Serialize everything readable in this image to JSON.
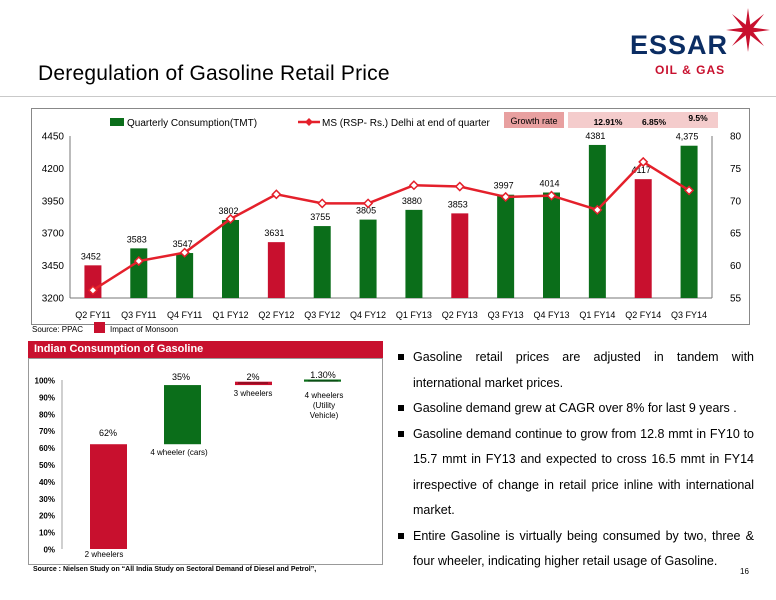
{
  "slide": {
    "title": "Deregulation of Gasoline Retail Price",
    "page_number": "16"
  },
  "logo": {
    "word": "ESSAR",
    "sub": "OIL & GAS",
    "mark_icon": "essar-star-icon"
  },
  "growth_box": {
    "label": "Growth rate",
    "values": [
      "12.91%",
      "6.85%",
      "9.5%"
    ]
  },
  "source1": "Source: PPAC",
  "monsoon_label": "Impact of Monsoon",
  "panel_title": "Indian Consumption of Gasoline",
  "source2": "Source : Nielsen Study on “All India Study on Sectoral Demand of Diesel and Petrol”,",
  "bullets": [
    "Gasoline retail prices are adjusted in tandem with international market prices.",
    "Gasoline demand grew at CAGR over 8% for last 9 years .",
    "Gasoline demand continue to grow from 12.8 mmt in FY10 to 15.7 mmt in FY13 and expected to cross 16.5 mmt in FY14 irrespective of change in retail price inline with international market.",
    "Entire Gasoline is virtually being consumed by two, three & four wheeler, indicating higher retail usage of Gasoline."
  ],
  "colors": {
    "green": "#0b6e1a",
    "red": "#c8102e",
    "line_red": "#e4202b",
    "growth_label_bg": "#e8a0a0",
    "growth_values_bg": "#f4cccc"
  },
  "chart_data": [
    {
      "type": "bar",
      "categories": [
        "Q2 FY11",
        "Q3 FY11",
        "Q4 FY11",
        "Q1 FY12",
        "Q2 FY12",
        "Q3 FY12",
        "Q4 FY12",
        "Q1 FY13",
        "Q2 FY13",
        "Q3 FY13",
        "Q4 FY13",
        "Q1 FY14",
        "Q2 FY14",
        "Q3 FY14"
      ],
      "series": [
        {
          "name": "Quarterly Consumption(TMT)",
          "values": [
            3452,
            3583,
            3547,
            3802,
            3631,
            3755,
            3805,
            3880,
            3853,
            3997,
            4014,
            4381,
            4117,
            4375
          ],
          "value_labels": [
            "3452",
            "3583",
            "3547",
            "3802",
            "3631",
            "3755",
            "3805",
            "3880",
            "3853",
            "3997",
            "4014",
            "4381",
            "4117",
            "4,375"
          ],
          "bar_colors": [
            "red",
            "green",
            "green",
            "green",
            "red",
            "green",
            "green",
            "green",
            "red",
            "green",
            "green",
            "green",
            "red",
            "green"
          ]
        },
        {
          "name": "MS (RSP- Rs.) Delhi at end of quarter",
          "axis": "right",
          "values": [
            56.2,
            60.7,
            62.0,
            67.2,
            71.0,
            69.6,
            69.6,
            72.4,
            72.2,
            70.6,
            70.8,
            68.6,
            76.0,
            71.6
          ]
        }
      ],
      "y_left": {
        "min": 3200,
        "max": 4450,
        "ticks": [
          3200,
          3450,
          3700,
          3950,
          4200,
          4450
        ]
      },
      "y_right": {
        "min": 55,
        "max": 80,
        "ticks": [
          55,
          60,
          65,
          70,
          75,
          80
        ]
      },
      "legend": "top",
      "grid": false
    },
    {
      "type": "bar",
      "subtype": "waterfall",
      "categories": [
        "2 wheelers",
        "4 wheeler (cars)",
        "3 wheelers",
        "4 wheelers (Utility Vehicle)"
      ],
      "values": [
        62,
        35,
        2,
        1.3
      ],
      "value_labels": [
        "62%",
        "35%",
        "2%",
        "1.30%"
      ],
      "y_ticks": [
        "0%",
        "10%",
        "20%",
        "30%",
        "40%",
        "50%",
        "60%",
        "70%",
        "80%",
        "90%",
        "100%"
      ],
      "ylim": [
        0,
        100
      ],
      "bar_colors": [
        "red",
        "green",
        "red",
        "green"
      ]
    }
  ]
}
